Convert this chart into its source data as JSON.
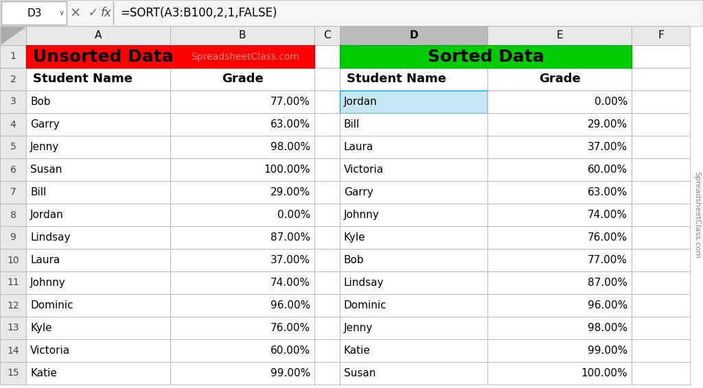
{
  "formula_bar": {
    "cell_ref": "D3",
    "formula": "=SORT(A3:B100,2,1,FALSE)"
  },
  "col_headers": [
    "",
    "A",
    "B",
    "C",
    "D",
    "E",
    "F"
  ],
  "row_numbers": [
    "1",
    "2",
    "3",
    "4",
    "5",
    "6",
    "7",
    "8",
    "9",
    "10",
    "11",
    "12",
    "13",
    "14",
    "15"
  ],
  "unsorted_data": {
    "header1": "Unsorted Data",
    "watermark": "SpreadsheetClass.com",
    "col_a_header": "Student Name",
    "col_b_header": "Grade",
    "names": [
      "Bob",
      "Garry",
      "Jenny",
      "Susan",
      "Bill",
      "Jordan",
      "Lindsay",
      "Laura",
      "Johnny",
      "Dominic",
      "Kyle",
      "Victoria",
      "Katie"
    ],
    "grades": [
      "77.00%",
      "63.00%",
      "98.00%",
      "100.00%",
      "29.00%",
      "0.00%",
      "87.00%",
      "37.00%",
      "74.00%",
      "96.00%",
      "76.00%",
      "60.00%",
      "99.00%"
    ]
  },
  "sorted_data": {
    "header1": "Sorted Data",
    "col_d_header": "Student Name",
    "col_e_header": "Grade",
    "names": [
      "Jordan",
      "Bill",
      "Laura",
      "Victoria",
      "Garry",
      "Johnny",
      "Kyle",
      "Bob",
      "Lindsay",
      "Dominic",
      "Jenny",
      "Katie",
      "Susan"
    ],
    "grades": [
      "0.00%",
      "29.00%",
      "37.00%",
      "60.00%",
      "63.00%",
      "74.00%",
      "76.00%",
      "77.00%",
      "87.00%",
      "96.00%",
      "98.00%",
      "99.00%",
      "100.00%"
    ]
  },
  "colors": {
    "red_header": "#FF0000",
    "green_header": "#00CC00",
    "white": "#FFFFFF",
    "light_blue_selected": "#C5E8F5",
    "grid_line": "#AAAAAA",
    "formula_bar_bg": "#F5F5F5",
    "col_header_bg": "#E8E8E8",
    "selected_col_header": "#BBBBBB",
    "row_num_bg": "#F0F0F0",
    "watermark_color": "#FFAAAA",
    "light_gray_row": "#F9F9F9",
    "white_row": "#FFFFFF",
    "side_watermark": "#777777"
  },
  "figsize": [
    10.24,
    5.66
  ],
  "dpi": 100
}
